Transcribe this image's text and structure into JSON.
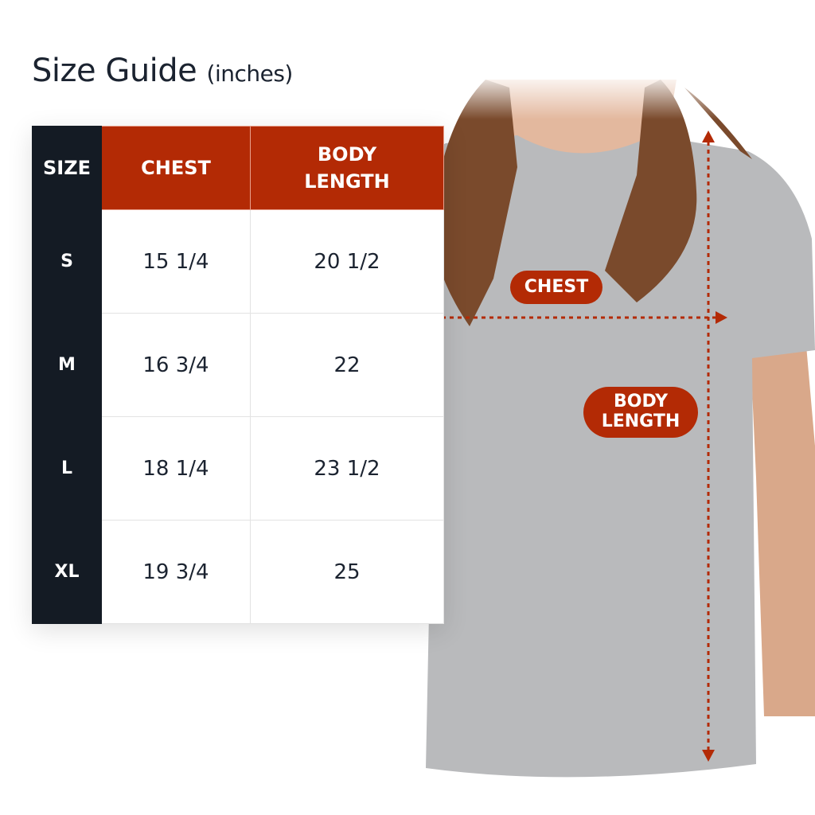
{
  "title": {
    "main": "Size Guide",
    "unit": "(inches)"
  },
  "table": {
    "headers": [
      "SIZE",
      "CHEST",
      "BODY LENGTH"
    ],
    "rows": [
      {
        "size": "S",
        "chest": "15 1/4",
        "length": "20 1/2"
      },
      {
        "size": "M",
        "chest": "16 3/4",
        "length": "22"
      },
      {
        "size": "L",
        "chest": "18 1/4",
        "length": "23 1/2"
      },
      {
        "size": "XL",
        "chest": "19 3/4",
        "length": "25"
      }
    ]
  },
  "labels": {
    "chest": "CHEST",
    "body_length_1": "BODY",
    "body_length_2": "LENGTH"
  },
  "colors": {
    "accent": "#b32a05",
    "dark": "#141b24",
    "shirt": "#b9babc",
    "hair": "#7a4a2c"
  }
}
